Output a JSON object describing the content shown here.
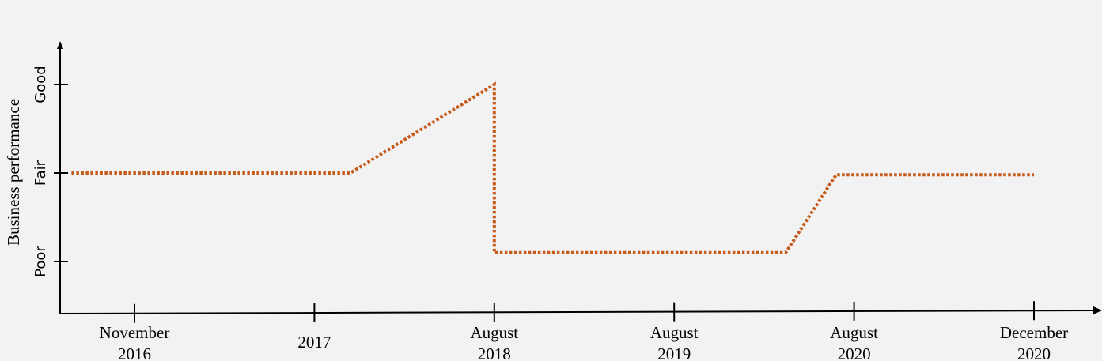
{
  "colors": {
    "background": "#f2f2f2",
    "axis": "#000000",
    "series": "#c55a1a"
  },
  "chart_data": {
    "type": "line",
    "title": "",
    "xlabel": "",
    "ylabel": "Business performance",
    "y_categories": [
      "Poor",
      "Fair",
      "Good"
    ],
    "x_ticks": [
      {
        "lines": [
          "November",
          "2016"
        ]
      },
      {
        "lines": [
          "2017"
        ]
      },
      {
        "lines": [
          "August",
          "2018"
        ]
      },
      {
        "lines": [
          "August",
          "2019"
        ]
      },
      {
        "lines": [
          "August",
          "2020"
        ]
      },
      {
        "lines": [
          "December",
          "2020"
        ]
      }
    ],
    "grid": false,
    "legend": "none",
    "series": [
      {
        "style": "dotted",
        "points": [
          {
            "x": -0.35,
            "y": 1
          },
          {
            "x": 1.2,
            "y": 1
          },
          {
            "x": 2.0,
            "y": 2
          },
          {
            "x": 2.0,
            "y": 0.1
          },
          {
            "x": 3.62,
            "y": 0.1
          },
          {
            "x": 3.9,
            "y": 0.98
          },
          {
            "x": 5.0,
            "y": 0.98
          }
        ]
      }
    ]
  }
}
